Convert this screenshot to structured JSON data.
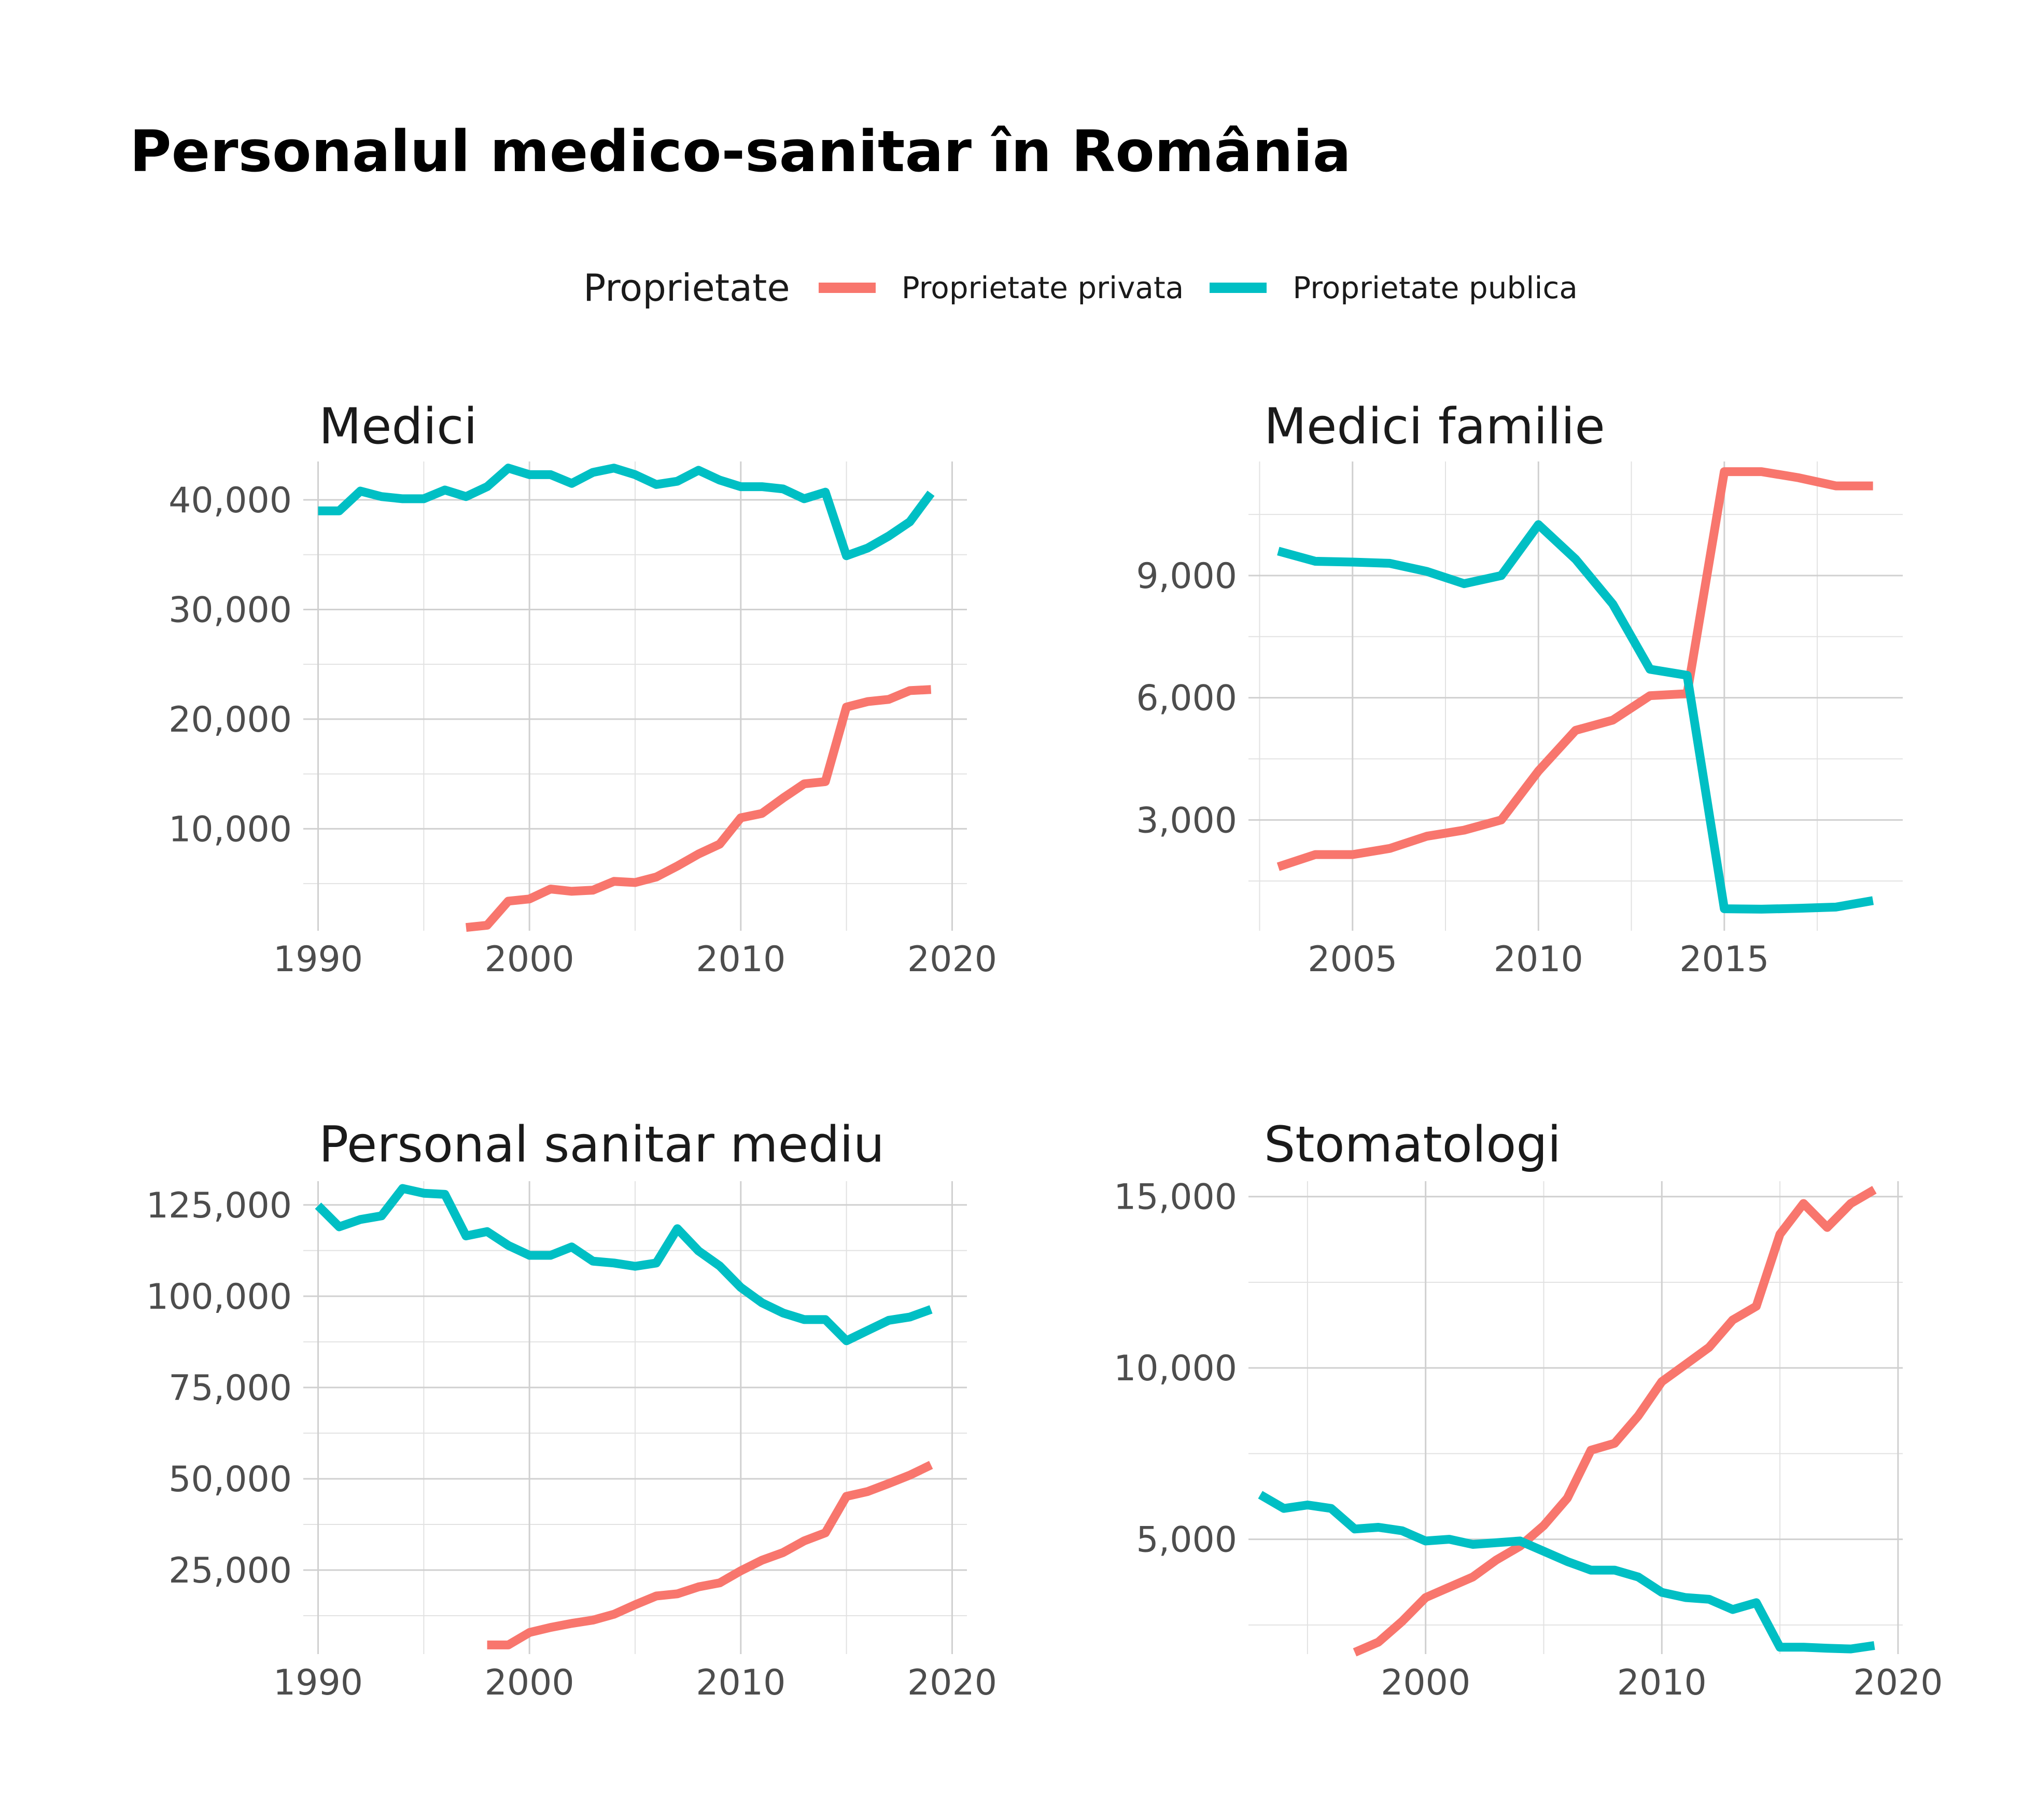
{
  "title": "Personalul medico-sanitar în România",
  "legend": {
    "title": "Proprietate",
    "items": [
      {
        "label": "Proprietate privata",
        "color": "#F8766D"
      },
      {
        "label": "Proprietate publica",
        "color": "#00BFC4"
      }
    ],
    "placement": "top"
  },
  "chart_data": [
    {
      "type": "line",
      "title": "Medici",
      "xlabel": "",
      "ylabel": "",
      "xlim": [
        1989.3,
        2020.7
      ],
      "ylim": [
        700,
        43500
      ],
      "xticks": [
        1990,
        2000,
        2010,
        2020
      ],
      "xtick_labels": [
        "1990",
        "2000",
        "2010",
        "2020"
      ],
      "yticks": [
        10000,
        20000,
        30000,
        40000
      ],
      "ytick_labels": [
        "10,000",
        "20,000",
        "30,000",
        "40,000"
      ],
      "grid": true,
      "series": [
        {
          "name": "Proprietate privata",
          "x": [
            1997,
            1998,
            1999,
            2000,
            2001,
            2002,
            2003,
            2004,
            2005,
            2006,
            2007,
            2008,
            2009,
            2010,
            2011,
            2012,
            2013,
            2014,
            2015,
            2016,
            2017,
            2018,
            2019
          ],
          "y": [
            1000,
            1200,
            3400,
            3600,
            4500,
            4300,
            4400,
            5200,
            5100,
            5600,
            6600,
            7700,
            8600,
            11000,
            11400,
            12800,
            14100,
            14300,
            21100,
            21600,
            21800,
            22600,
            22700
          ]
        },
        {
          "name": "Proprietate publica",
          "x": [
            1990,
            1991,
            1992,
            1993,
            1994,
            1995,
            1996,
            1997,
            1998,
            1999,
            2000,
            2001,
            2002,
            2003,
            2004,
            2005,
            2006,
            2007,
            2008,
            2009,
            2010,
            2011,
            2012,
            2013,
            2014,
            2015,
            2016,
            2017,
            2018,
            2019
          ],
          "y": [
            39000,
            39000,
            40800,
            40300,
            40100,
            40100,
            40900,
            40300,
            41200,
            42900,
            42300,
            42300,
            41500,
            42500,
            42900,
            42300,
            41400,
            41700,
            42700,
            41800,
            41200,
            41200,
            41000,
            40100,
            40700,
            34900,
            35600,
            36700,
            38000,
            40600
          ]
        }
      ]
    },
    {
      "type": "line",
      "title": "Medici familie",
      "xlabel": "",
      "ylabel": "",
      "xlim": [
        2002.2,
        2019.8
      ],
      "ylim": [
        280,
        11800
      ],
      "xticks": [
        2005,
        2010,
        2015
      ],
      "xtick_labels": [
        "2005",
        "2010",
        "2015"
      ],
      "yticks": [
        3000,
        6000,
        9000
      ],
      "ytick_labels": [
        "3,000",
        "6,000",
        "9,000"
      ],
      "grid": true,
      "series": [
        {
          "name": "Proprietate privata",
          "x": [
            2003,
            2004,
            2005,
            2006,
            2007,
            2008,
            2009,
            2010,
            2011,
            2012,
            2013,
            2014,
            2015,
            2016,
            2017,
            2018,
            2019
          ],
          "y": [
            1850,
            2150,
            2150,
            2300,
            2600,
            2750,
            3000,
            4200,
            5200,
            5450,
            6050,
            6100,
            11550,
            11550,
            11400,
            11200,
            11200
          ]
        },
        {
          "name": "Proprietate publica",
          "x": [
            2003,
            2004,
            2005,
            2006,
            2007,
            2008,
            2009,
            2010,
            2011,
            2012,
            2013,
            2014,
            2015,
            2016,
            2017,
            2018,
            2019
          ],
          "y": [
            9600,
            9350,
            9330,
            9300,
            9100,
            8800,
            9000,
            10250,
            9400,
            8300,
            6700,
            6550,
            820,
            810,
            830,
            860,
            1020
          ]
        }
      ]
    },
    {
      "type": "line",
      "title": "Personal sanitar mediu",
      "xlabel": "",
      "ylabel": "",
      "xlim": [
        1989.3,
        2020.7
      ],
      "ylim": [
        2000,
        131500
      ],
      "xticks": [
        1990,
        2000,
        2010,
        2020
      ],
      "xtick_labels": [
        "1990",
        "2000",
        "2010",
        "2020"
      ],
      "yticks": [
        25000,
        50000,
        75000,
        100000,
        125000
      ],
      "ytick_labels": [
        "25,000",
        "50,000",
        "75,000",
        "100,000",
        "125,000"
      ],
      "grid": true,
      "series": [
        {
          "name": "Proprietate privata",
          "x": [
            1998,
            1999,
            2000,
            2001,
            2002,
            2003,
            2004,
            2005,
            2006,
            2007,
            2008,
            2009,
            2010,
            2011,
            2012,
            2013,
            2014,
            2015,
            2016,
            2017,
            2018,
            2019
          ],
          "y": [
            4500,
            4500,
            7900,
            9300,
            10400,
            11300,
            12900,
            15500,
            17900,
            18500,
            20400,
            21500,
            24800,
            27700,
            29800,
            33000,
            35200,
            45200,
            46500,
            48700,
            51000,
            53800
          ]
        },
        {
          "name": "Proprietate publica",
          "x": [
            1990,
            1991,
            1992,
            1993,
            1994,
            1995,
            1996,
            1997,
            1998,
            1999,
            2000,
            2001,
            2002,
            2003,
            2004,
            2005,
            2006,
            2007,
            2008,
            2009,
            2010,
            2011,
            2012,
            2013,
            2014,
            2015,
            2016,
            2017,
            2018,
            2019
          ],
          "y": [
            124800,
            119000,
            121000,
            122000,
            129500,
            128200,
            127900,
            116500,
            117700,
            113900,
            111200,
            111200,
            113500,
            109600,
            109100,
            108200,
            109100,
            118500,
            112400,
            108300,
            102400,
            98200,
            95400,
            93600,
            93600,
            87800,
            90600,
            93400,
            94300,
            96400
          ]
        }
      ]
    },
    {
      "type": "line",
      "title": "Stomatologi",
      "xlabel": "",
      "ylabel": "",
      "xlim": [
        1992.5,
        2020.2
      ],
      "ylim": [
        1650,
        15450
      ],
      "xticks": [
        2000,
        2010,
        2020
      ],
      "xtick_labels": [
        "2000",
        "2010",
        "2020"
      ],
      "yticks": [
        5000,
        10000,
        15000
      ],
      "ytick_labels": [
        "5,000",
        "10,000",
        "15,000"
      ],
      "grid": true,
      "series": [
        {
          "name": "Proprietate privata",
          "x": [
            1997,
            1998,
            1999,
            2000,
            2001,
            2002,
            2003,
            2004,
            2005,
            2006,
            2007,
            2008,
            2009,
            2010,
            2011,
            2012,
            2013,
            2014,
            2015,
            2016,
            2017,
            2018,
            2019
          ],
          "y": [
            1700,
            2000,
            2600,
            3300,
            3600,
            3900,
            4400,
            4800,
            5400,
            6200,
            7600,
            7800,
            8600,
            9600,
            10100,
            10600,
            11400,
            11800,
            13900,
            14800,
            14100,
            14800,
            15200
          ]
        },
        {
          "name": "Proprietate publica",
          "x": [
            1993,
            1994,
            1995,
            1996,
            1997,
            1998,
            1999,
            2000,
            2001,
            2002,
            2003,
            2004,
            2005,
            2006,
            2007,
            2008,
            2009,
            2010,
            2011,
            2012,
            2013,
            2014,
            2015,
            2016,
            2017,
            2018,
            2019
          ],
          "y": [
            6300,
            5900,
            6000,
            5900,
            5300,
            5350,
            5250,
            4950,
            5000,
            4850,
            4900,
            4950,
            4650,
            4350,
            4100,
            4100,
            3900,
            3450,
            3300,
            3250,
            2950,
            3150,
            1850,
            1850,
            1820,
            1800,
            1900
          ]
        }
      ]
    }
  ]
}
